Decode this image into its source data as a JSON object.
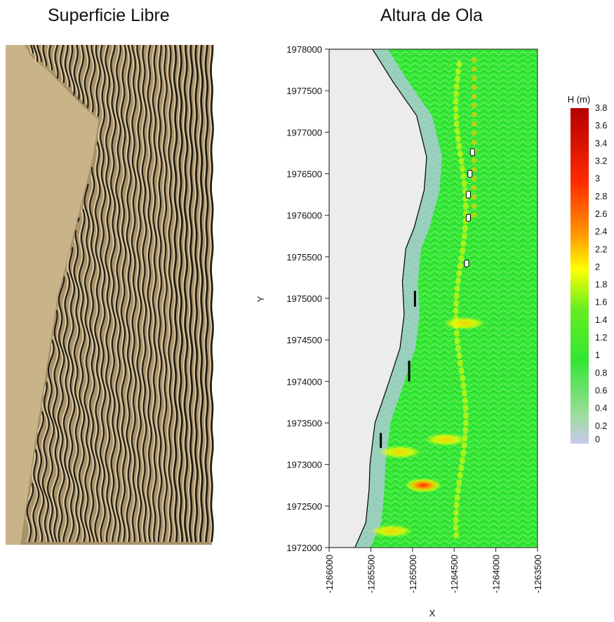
{
  "left_panel": {
    "title": "Superficie Libre",
    "land_color": "#c9b48a",
    "crest_light": "#e6d6b0",
    "crest_dark": "#1e1a12"
  },
  "chart_data": {
    "type": "heatmap",
    "title": "Altura de Ola",
    "xlabel": "X",
    "ylabel": "Y",
    "xlim": [
      -1266000,
      -1263500
    ],
    "ylim": [
      1972000,
      1978000
    ],
    "x_ticks": [
      "-1266000",
      "-1265500",
      "-1265000",
      "-1264500",
      "-1264000",
      "-1263500"
    ],
    "y_ticks": [
      "1972000",
      "1972500",
      "1973000",
      "1973500",
      "1974000",
      "1974500",
      "1975000",
      "1975500",
      "1976000",
      "1976500",
      "1977000",
      "1977500",
      "1978000"
    ],
    "colorbar": {
      "label": "H (m)",
      "ticks": [
        "0",
        "0.2",
        "0.4",
        "0.6",
        "0.8",
        "1",
        "1.2",
        "1.4",
        "1.6",
        "1.8",
        "2",
        "2.2",
        "2.4",
        "2.6",
        "2.8",
        "3",
        "3.2",
        "3.4",
        "3.6",
        "3.8"
      ],
      "range": [
        0,
        3.8
      ],
      "colors": [
        "#c8c8ee",
        "#9fdc9f",
        "#33e633",
        "#66ee22",
        "#ffff00",
        "#ff9a00",
        "#ff2a00",
        "#b40000"
      ]
    },
    "coastline": [
      {
        "x": -1265690,
        "y": 1972000
      },
      {
        "x": -1265560,
        "y": 1972300
      },
      {
        "x": -1265520,
        "y": 1972700
      },
      {
        "x": -1265510,
        "y": 1973000
      },
      {
        "x": -1265450,
        "y": 1973500
      },
      {
        "x": -1265280,
        "y": 1974000
      },
      {
        "x": -1265150,
        "y": 1974400
      },
      {
        "x": -1265100,
        "y": 1974800
      },
      {
        "x": -1265120,
        "y": 1975200
      },
      {
        "x": -1265080,
        "y": 1975600
      },
      {
        "x": -1264980,
        "y": 1975850
      },
      {
        "x": -1264860,
        "y": 1976300
      },
      {
        "x": -1264830,
        "y": 1976700
      },
      {
        "x": -1264950,
        "y": 1977200
      },
      {
        "x": -1265230,
        "y": 1977600
      },
      {
        "x": -1265480,
        "y": 1978000
      }
    ],
    "breakwaters": [
      {
        "x": -1264970,
        "y1": 1974900,
        "y2": 1975090
      },
      {
        "x": -1265040,
        "y1": 1974000,
        "y2": 1974250
      },
      {
        "x": -1265380,
        "y1": 1973200,
        "y2": 1973380
      }
    ],
    "islets": [
      {
        "x": -1264280,
        "y": 1976760
      },
      {
        "x": -1264310,
        "y": 1976500
      },
      {
        "x": -1264330,
        "y": 1976250
      },
      {
        "x": -1264330,
        "y": 1975970
      },
      {
        "x": -1264350,
        "y": 1975420
      }
    ],
    "hotspots": [
      {
        "x": -1264870,
        "y": 1972750,
        "h": 2.8
      },
      {
        "x": -1265150,
        "y": 1973150,
        "h": 2.2
      },
      {
        "x": -1265250,
        "y": 1972200,
        "h": 2.1
      },
      {
        "x": -1264600,
        "y": 1973300,
        "h": 1.8
      },
      {
        "x": -1264380,
        "y": 1974700,
        "h": 2.0
      }
    ]
  }
}
